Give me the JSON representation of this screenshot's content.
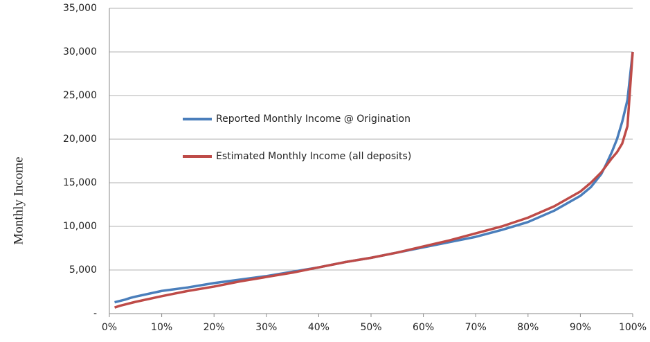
{
  "chart_data": {
    "type": "line",
    "y_label": "Monthly Income",
    "x": [
      1,
      2,
      3,
      4,
      5,
      10,
      15,
      20,
      25,
      30,
      35,
      40,
      45,
      50,
      55,
      60,
      65,
      70,
      75,
      80,
      85,
      90,
      92,
      94,
      95,
      96,
      97,
      98,
      99,
      100
    ],
    "series": [
      {
        "name": "Reported Monthly Income @ Origination",
        "color": "#4a7ebb",
        "values": [
          1300,
          1450,
          1600,
          1800,
          1950,
          2600,
          3000,
          3500,
          3900,
          4300,
          4800,
          5300,
          5900,
          6400,
          7000,
          7600,
          8200,
          8800,
          9600,
          10500,
          11800,
          13500,
          14500,
          16000,
          17200,
          18500,
          20000,
          22000,
          24500,
          30000
        ]
      },
      {
        "name": "Estimated Monthly Income (all deposits)",
        "color": "#be4b48",
        "values": [
          700,
          900,
          1050,
          1200,
          1350,
          2000,
          2600,
          3100,
          3700,
          4200,
          4700,
          5300,
          5900,
          6400,
          7000,
          7700,
          8400,
          9200,
          10000,
          11000,
          12300,
          14000,
          15000,
          16200,
          17000,
          17800,
          18500,
          19500,
          21500,
          30000
        ]
      }
    ],
    "xlim": [
      0,
      100
    ],
    "xticks": [
      {
        "value": 0,
        "label": "0%"
      },
      {
        "value": 10,
        "label": "10%"
      },
      {
        "value": 20,
        "label": "20%"
      },
      {
        "value": 30,
        "label": "30%"
      },
      {
        "value": 40,
        "label": "40%"
      },
      {
        "value": 50,
        "label": "50%"
      },
      {
        "value": 60,
        "label": "60%"
      },
      {
        "value": 70,
        "label": "70%"
      },
      {
        "value": 80,
        "label": "80%"
      },
      {
        "value": 90,
        "label": "90%"
      },
      {
        "value": 100,
        "label": "100%"
      }
    ],
    "ylim": [
      0,
      35000
    ],
    "yticks": [
      {
        "value": 0,
        "label": "-"
      },
      {
        "value": 5000,
        "label": "5,000"
      },
      {
        "value": 10000,
        "label": "10,000"
      },
      {
        "value": 15000,
        "label": "15,000"
      },
      {
        "value": 20000,
        "label": "20,000"
      },
      {
        "value": 25000,
        "label": "25,000"
      },
      {
        "value": 30000,
        "label": "30,000"
      },
      {
        "value": 35000,
        "label": "35,000"
      }
    ],
    "grid": true
  }
}
